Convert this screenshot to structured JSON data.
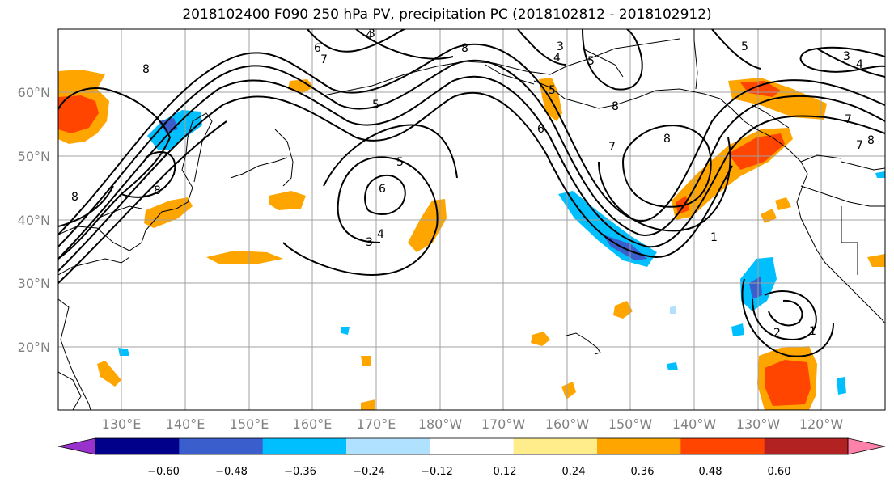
{
  "title": "2018102400 F090 250 hPa PV, precipitation PC (2018102812 - 2018102912)",
  "map": {
    "lat_labels": [
      "60°N",
      "50°N",
      "40°N",
      "30°N",
      "20°N"
    ],
    "lon_labels": [
      "130°E",
      "140°E",
      "150°E",
      "160°E",
      "170°E",
      "180°W",
      "170°W",
      "160°W",
      "150°W",
      "140°W",
      "130°W",
      "120°W"
    ],
    "extent": {
      "lon_min": 120,
      "lon_max": 250,
      "lat_min": 10,
      "lat_max": 70
    },
    "gridlines": true
  },
  "contour_labels": [
    "8",
    "7",
    "6",
    "4",
    "3",
    "8",
    "8",
    "5",
    "6",
    "5",
    "4",
    "3",
    "8",
    "6",
    "5",
    "4",
    "3",
    "8",
    "7",
    "8",
    "5",
    "5",
    "1",
    "3",
    "4",
    "7",
    "8",
    "7",
    "2",
    "1"
  ],
  "colorbar": {
    "ticks": [
      "−0.60",
      "−0.48",
      "−0.36",
      "−0.24",
      "−0.12",
      "0.12",
      "0.24",
      "0.36",
      "0.48",
      "0.60"
    ],
    "colors": [
      "#9932cc",
      "#00008b",
      "#3a5fcd",
      "#00bfff",
      "#b0e2ff",
      "#ffffff",
      "#ffec8b",
      "#ffa500",
      "#ff4500",
      "#b22222",
      "#ff82ab"
    ]
  },
  "colors": {
    "blue_strong": "#00bfff",
    "blue_mid": "#3a5fcd",
    "orange": "#ffa500",
    "red_orange": "#ff4500",
    "yellow": "#ffec8b"
  }
}
